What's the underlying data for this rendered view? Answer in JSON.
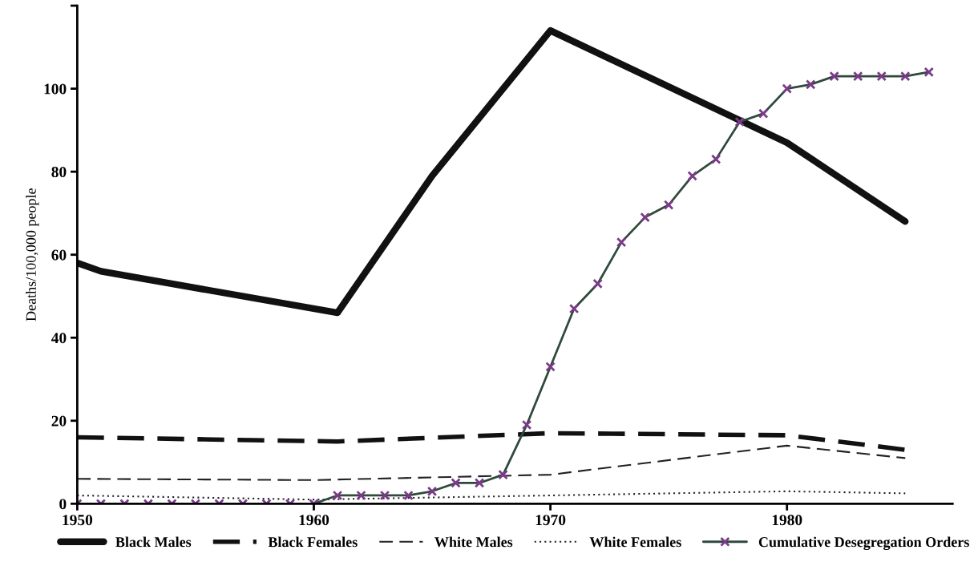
{
  "chart_data": {
    "type": "line",
    "ylabel": "Deaths/100,000 people",
    "xlim": [
      1950,
      1987
    ],
    "xticks": [
      1950,
      1960,
      1970,
      1980
    ],
    "ylim": [
      0,
      120
    ],
    "yticks": [
      0,
      20,
      40,
      60,
      80,
      100,
      {
        "value": 120,
        "label": null
      }
    ],
    "grid": false,
    "legend": "bottom",
    "series": [
      {
        "name": "Black Males",
        "color": "#111111",
        "line_style": "solid",
        "marker": "none",
        "x": [
          1950,
          1951,
          1961,
          1965,
          1970,
          1980,
          1985
        ],
        "values": [
          58,
          56,
          46,
          79,
          114,
          87,
          68
        ]
      },
      {
        "name": "Black Females",
        "color": "#111111",
        "line_style": "dashed",
        "marker": "none",
        "x": [
          1950,
          1961,
          1970,
          1980,
          1985
        ],
        "values": [
          16,
          15,
          17,
          16.5,
          13
        ]
      },
      {
        "name": "White Males",
        "color": "#222222",
        "line_style": "dashed",
        "marker": "none",
        "x": [
          1950,
          1960,
          1970,
          1980,
          1985
        ],
        "values": [
          6,
          5.7,
          7,
          14,
          11
        ]
      },
      {
        "name": "White Females",
        "color": "#222222",
        "line_style": "dotted",
        "marker": "none",
        "x": [
          1950,
          1960,
          1970,
          1980,
          1985
        ],
        "values": [
          2,
          1,
          2,
          3,
          2.5
        ]
      },
      {
        "name": "Cumulative Desegregation Orders",
        "color": "#2f4a3c",
        "line_style": "solid",
        "marker": "cross",
        "x": [
          1950,
          1951,
          1952,
          1953,
          1954,
          1955,
          1956,
          1957,
          1958,
          1959,
          1960,
          1961,
          1962,
          1963,
          1964,
          1965,
          1966,
          1967,
          1968,
          1969,
          1970,
          1971,
          1972,
          1973,
          1974,
          1975,
          1976,
          1977,
          1978,
          1979,
          1980,
          1981,
          1982,
          1983,
          1984,
          1985,
          1986
        ],
        "values": [
          0,
          0,
          0,
          0,
          0,
          0,
          0,
          0,
          0,
          0,
          0,
          2,
          2,
          2,
          2,
          3,
          5,
          5,
          7,
          19,
          33,
          47,
          53,
          63,
          69,
          72,
          79,
          83,
          92,
          94,
          100,
          101,
          103,
          103,
          103,
          103,
          104
        ]
      }
    ]
  }
}
